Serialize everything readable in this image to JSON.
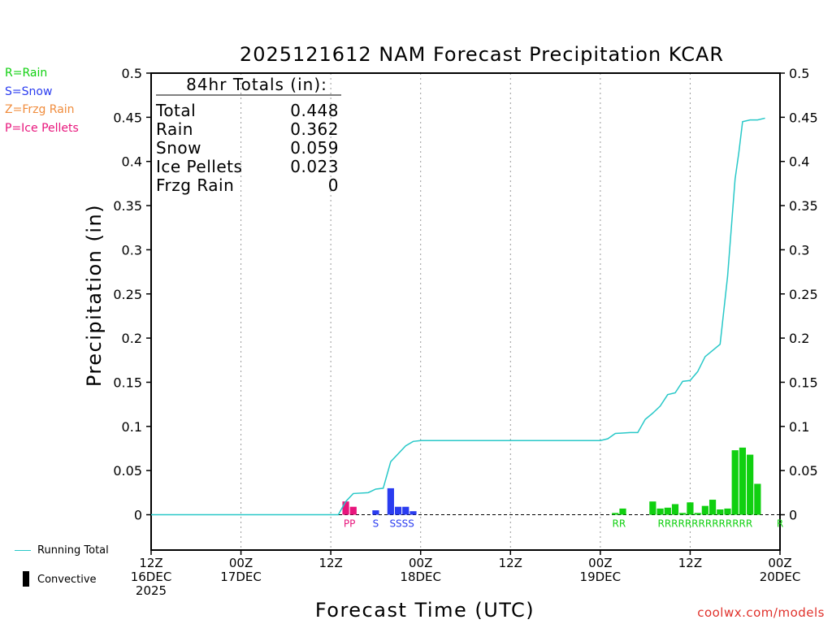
{
  "chart_data": {
    "type": "bar",
    "title": "2025121612 NAM Forecast Precipitation KCAR",
    "xlabel": "Forecast Time (UTC)",
    "ylabel": "Precipitation (in)",
    "ylim": [
      -0.04,
      0.5
    ],
    "xlim": [
      0,
      84
    ],
    "yticks": [
      {
        "v": 0.5,
        "label": "0.5"
      },
      {
        "v": 0.45,
        "label": "0.45"
      },
      {
        "v": 0.4,
        "label": "0.4"
      },
      {
        "v": 0.35,
        "label": "0.35"
      },
      {
        "v": 0.3,
        "label": "0.3"
      },
      {
        "v": 0.25,
        "label": "0.25"
      },
      {
        "v": 0.2,
        "label": "0.2"
      },
      {
        "v": 0.15,
        "label": "0.15"
      },
      {
        "v": 0.1,
        "label": "0.1"
      },
      {
        "v": 0.05,
        "label": "0.05"
      },
      {
        "v": 0,
        "label": "0"
      }
    ],
    "xticks": [
      {
        "h": 0,
        "lines": [
          "12Z",
          "16DEC",
          "2025"
        ]
      },
      {
        "h": 12,
        "lines": [
          "00Z",
          "17DEC"
        ]
      },
      {
        "h": 24,
        "lines": [
          "12Z"
        ]
      },
      {
        "h": 36,
        "lines": [
          "00Z",
          "18DEC"
        ]
      },
      {
        "h": 48,
        "lines": [
          "12Z"
        ]
      },
      {
        "h": 60,
        "lines": [
          "00Z",
          "19DEC"
        ]
      },
      {
        "h": 72,
        "lines": [
          "12Z"
        ]
      },
      {
        "h": 84,
        "lines": [
          "00Z",
          "20DEC"
        ]
      }
    ],
    "colors": {
      "R": "#10d010",
      "S": "#2a3cf0",
      "P": "#e8157c",
      "Z": "#f08c3c",
      "running": "#28c8c8"
    },
    "bars": [
      {
        "h": 26,
        "v": 0.015,
        "t": "P"
      },
      {
        "h": 27,
        "v": 0.009,
        "t": "P"
      },
      {
        "h": 30,
        "v": 0.005,
        "t": "S"
      },
      {
        "h": 32,
        "v": 0.03,
        "t": "S"
      },
      {
        "h": 33,
        "v": 0.009,
        "t": "S"
      },
      {
        "h": 34,
        "v": 0.009,
        "t": "S"
      },
      {
        "h": 35,
        "v": 0.004,
        "t": "S"
      },
      {
        "h": 62,
        "v": 0.002,
        "t": "R"
      },
      {
        "h": 63,
        "v": 0.007,
        "t": "R"
      },
      {
        "h": 67,
        "v": 0.015,
        "t": "R"
      },
      {
        "h": 68,
        "v": 0.007,
        "t": "R"
      },
      {
        "h": 69,
        "v": 0.008,
        "t": "R"
      },
      {
        "h": 70,
        "v": 0.012,
        "t": "R"
      },
      {
        "h": 71,
        "v": 0.002,
        "t": "R"
      },
      {
        "h": 72,
        "v": 0.014,
        "t": "R"
      },
      {
        "h": 73,
        "v": 0.002,
        "t": "R"
      },
      {
        "h": 74,
        "v": 0.01,
        "t": "R"
      },
      {
        "h": 75,
        "v": 0.017,
        "t": "R"
      },
      {
        "h": 76,
        "v": 0.006,
        "t": "R"
      },
      {
        "h": 77,
        "v": 0.007,
        "t": "R"
      },
      {
        "h": 78,
        "v": 0.073,
        "t": "R"
      },
      {
        "h": 79,
        "v": 0.076,
        "t": "R"
      },
      {
        "h": 80,
        "v": 0.068,
        "t": "R"
      },
      {
        "h": 81,
        "v": 0.035,
        "t": "R"
      }
    ],
    "running_total": [
      [
        0,
        0
      ],
      [
        25,
        0
      ],
      [
        26,
        0.015
      ],
      [
        27,
        0.024
      ],
      [
        29,
        0.025
      ],
      [
        30,
        0.029
      ],
      [
        31,
        0.03
      ],
      [
        32,
        0.06
      ],
      [
        33,
        0.069
      ],
      [
        34,
        0.078
      ],
      [
        35,
        0.083
      ],
      [
        36,
        0.084
      ],
      [
        60,
        0.084
      ],
      [
        61,
        0.086
      ],
      [
        62,
        0.092
      ],
      [
        64,
        0.093
      ],
      [
        65,
        0.093
      ],
      [
        66,
        0.108
      ],
      [
        67,
        0.115
      ],
      [
        68,
        0.123
      ],
      [
        69,
        0.136
      ],
      [
        70,
        0.138
      ],
      [
        71,
        0.151
      ],
      [
        72,
        0.152
      ],
      [
        73,
        0.162
      ],
      [
        74,
        0.179
      ],
      [
        76,
        0.193
      ],
      [
        77,
        0.27
      ],
      [
        78,
        0.38
      ],
      [
        78.5,
        0.41
      ],
      [
        79,
        0.445
      ],
      [
        80,
        0.447
      ],
      [
        81,
        0.447
      ],
      [
        82,
        0.449
      ]
    ],
    "type_labels": [
      {
        "h": 26.5,
        "text": "PP",
        "t": "P"
      },
      {
        "h": 30,
        "text": "S",
        "t": "S"
      },
      {
        "h": 33.5,
        "text": "SSSS",
        "t": "S"
      },
      {
        "h": 62.5,
        "text": "RR",
        "t": "R"
      },
      {
        "h": 74,
        "text": "RRRRRRRRRRRRRR",
        "t": "R"
      },
      {
        "h": 84,
        "text": "R",
        "t": "R"
      }
    ],
    "totals_box": {
      "heading": "84hr Totals (in):",
      "rows": [
        {
          "label": "Total",
          "value": "0.448"
        },
        {
          "label": "Rain",
          "value": "0.362"
        },
        {
          "label": "Snow",
          "value": "0.059"
        },
        {
          "label": "Ice Pellets",
          "value": "0.023"
        },
        {
          "label": "Frzg Rain",
          "value": "0"
        }
      ]
    }
  },
  "legend": [
    {
      "text": "R=Rain",
      "color": "#10d010"
    },
    {
      "text": "S=Snow",
      "color": "#2a3cf0"
    },
    {
      "text": "Z=Frzg Rain",
      "color": "#f08c3c"
    },
    {
      "text": "P=Ice Pellets",
      "color": "#e8157c"
    }
  ],
  "key": {
    "running_total": "Running Total",
    "convective": "Convective"
  },
  "credit": "coolwx.com/models"
}
